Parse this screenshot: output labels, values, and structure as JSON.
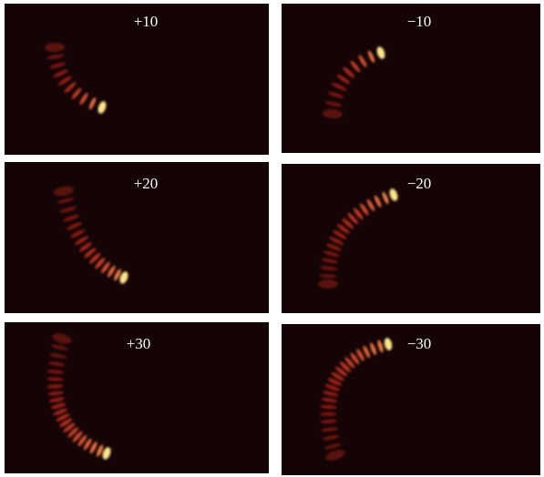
{
  "panels": [
    {
      "label": "+10"
    },
    {
      "label": "−10"
    },
    {
      "label": "+20"
    },
    {
      "label": "−20"
    },
    {
      "label": "+30"
    },
    {
      "label": "−30"
    }
  ]
}
